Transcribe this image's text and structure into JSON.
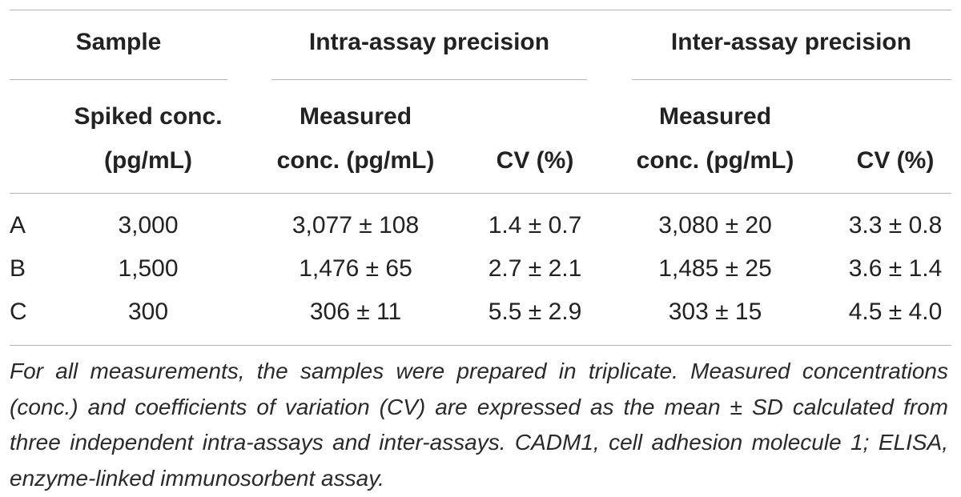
{
  "table": {
    "group_headers": {
      "sample": "Sample",
      "intra": "Intra-assay precision",
      "inter": "Inter-assay precision"
    },
    "sub_headers": {
      "spiked_line1": "Spiked conc.",
      "spiked_line2": "(pg/mL)",
      "intra_measured_line1": "Measured",
      "intra_measured_line2": "conc. (pg/mL)",
      "intra_cv": "CV (%)",
      "inter_measured_line1": "Measured",
      "inter_measured_line2": "conc. (pg/mL)",
      "inter_cv": "CV (%)"
    },
    "rows": [
      {
        "label": "A",
        "spiked": "3,000",
        "intra_measured": "3,077 ± 108",
        "intra_cv": "1.4 ± 0.7",
        "inter_measured": "3,080 ± 20",
        "inter_cv": "3.3 ± 0.8"
      },
      {
        "label": "B",
        "spiked": "1,500",
        "intra_measured": "1,476 ± 65",
        "intra_cv": "2.7 ± 2.1",
        "inter_measured": "1,485 ± 25",
        "inter_cv": "3.6 ± 1.4"
      },
      {
        "label": "C",
        "spiked": "300",
        "intra_measured": "306 ± 11",
        "intra_cv": "5.5 ± 2.9",
        "inter_measured": "303 ± 15",
        "inter_cv": "4.5 ± 4.0"
      }
    ],
    "footnote": "For all measurements, the samples were prepared in triplicate. Measured concentrations (conc.) and coefficients of variation (CV) are expressed as the mean ± SD calculated from three independent intra-assays and inter-assays. CADM1, cell adhesion molecule 1; ELISA, enzyme-linked immunosorbent assay."
  }
}
